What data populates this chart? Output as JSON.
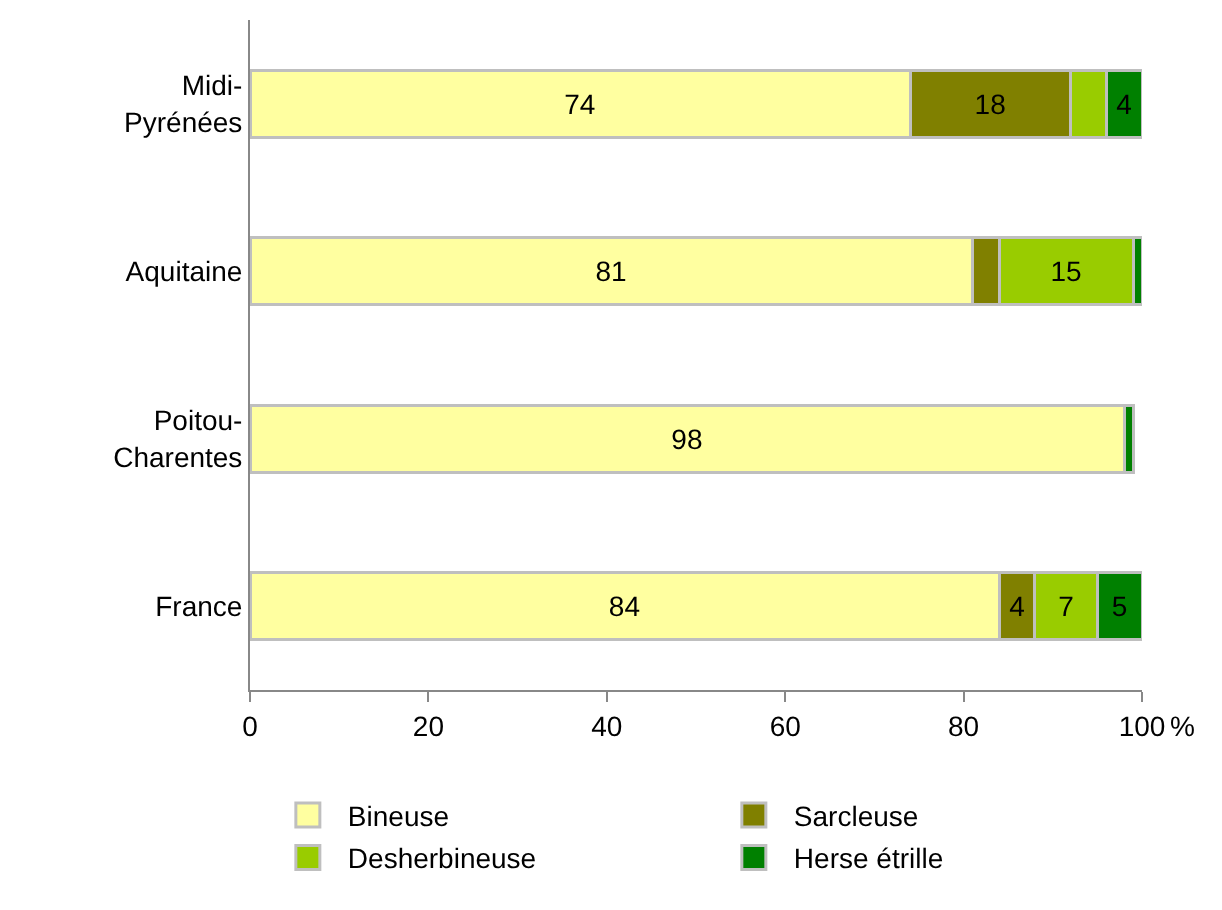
{
  "chart_data": {
    "type": "bar",
    "orientation": "horizontal",
    "stacked": true,
    "categories": [
      "Midi-\nPyrénées",
      "Aquitaine",
      "Poitou-\nCharentes",
      "France"
    ],
    "series": [
      {
        "name": "Bineuse",
        "color": "#ffffa0",
        "values": [
          74,
          81,
          98,
          84
        ],
        "value_labels": [
          "74",
          "81",
          "98",
          "84"
        ]
      },
      {
        "name": "Sarcleuse",
        "color": "#808000",
        "values": [
          18,
          3,
          null,
          4
        ],
        "value_labels": [
          "18",
          null,
          null,
          "4"
        ]
      },
      {
        "name": "Desherbineuse",
        "color": "#99cc00",
        "values": [
          4,
          15,
          null,
          7
        ],
        "value_labels": [
          null,
          "15",
          null,
          "7"
        ]
      },
      {
        "name": "Herse étrille",
        "color": "#008000",
        "values": [
          4,
          1,
          1,
          5
        ],
        "value_labels": [
          "4",
          null,
          null,
          "5"
        ]
      }
    ],
    "xlim": [
      0,
      100
    ],
    "xticks": [
      0,
      20,
      40,
      60,
      80,
      100
    ],
    "legend": "bottom",
    "annotations": [
      "%"
    ]
  }
}
